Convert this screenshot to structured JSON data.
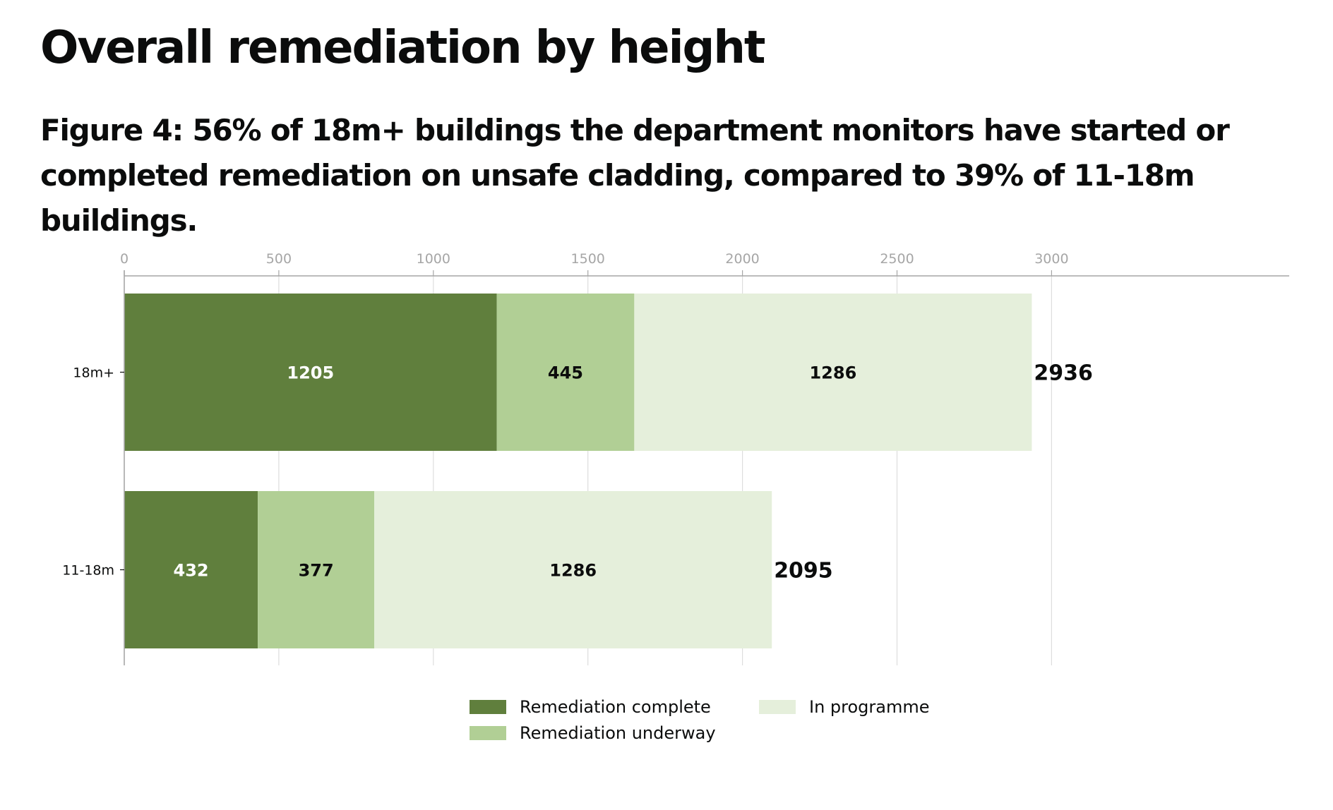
{
  "page": {
    "title": "Overall remediation by height",
    "figure_caption": "Figure 4: 56% of 18m+ buildings the department monitors have started or completed remediation on unsafe cladding, compared to 39% of 11-18m buildings."
  },
  "chart_data": {
    "type": "bar",
    "orientation": "horizontal",
    "stacked": true,
    "title": "Figure 4: 56% of 18m+ buildings the department monitors have started or completed remediation on unsafe cladding, compared to 39% of 11-18m buildings.",
    "xlabel": "",
    "ylabel": "",
    "xlim": [
      0,
      3000
    ],
    "x_ticks": [
      0,
      500,
      1000,
      1500,
      2000,
      2500,
      3000
    ],
    "x_axis_position": "top",
    "grid": true,
    "legend_position": "bottom",
    "categories": [
      "18m+",
      "11-18m"
    ],
    "series": [
      {
        "name": "Remediation complete",
        "values": [
          1205,
          432
        ],
        "color": "#607f3d",
        "label_color": "#ffffff"
      },
      {
        "name": "Remediation underway",
        "values": [
          445,
          377
        ],
        "color": "#b1cf95",
        "label_color": "#0b0c0c"
      },
      {
        "name": "In programme",
        "values": [
          1286,
          1286
        ],
        "color": "#e5efdb",
        "label_color": "#0b0c0c"
      }
    ],
    "totals": [
      2936,
      2095
    ]
  },
  "colors": {
    "axis": "#a6a6a6",
    "grid": "#dddddd",
    "text": "#0b0c0c"
  }
}
